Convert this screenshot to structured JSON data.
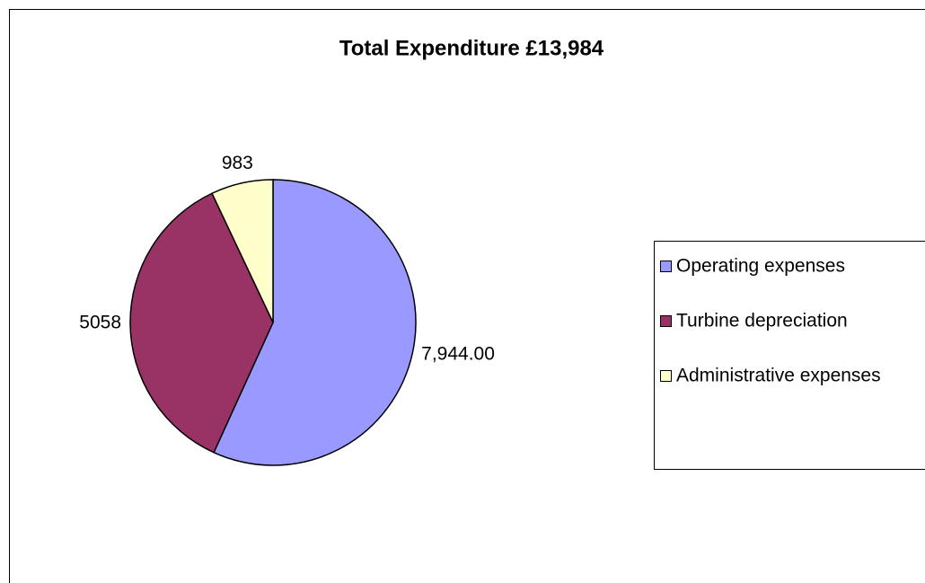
{
  "chart_data": {
    "type": "pie",
    "title": "Total Expenditure £13,984",
    "categories": [
      "Operating expenses",
      "Turbine depreciation",
      "Administrative expenses"
    ],
    "values": [
      7944,
      5058,
      983
    ],
    "value_labels": [
      "7,944.00",
      "5058",
      "983"
    ],
    "colors": [
      "#9999ff",
      "#993366",
      "#ffffcc"
    ],
    "legend": "right"
  }
}
